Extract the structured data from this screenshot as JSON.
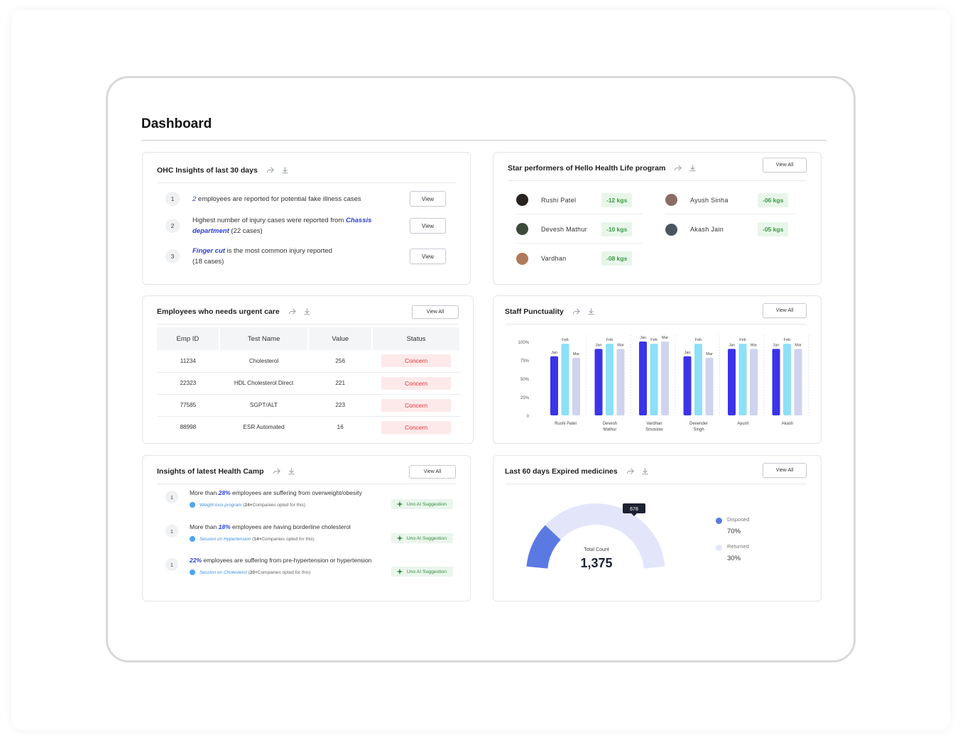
{
  "dashboard": {
    "title": "Dashboard"
  },
  "ohc": {
    "title": "OHC Insights of last 30 days",
    "items": [
      {
        "num": "1",
        "highlight": "2",
        "text": " employees are reported for potential fake illness cases",
        "button": "View"
      },
      {
        "num": "2",
        "text_before": "Highest number of injury cases were reported from ",
        "highlight": "Chassis department",
        "text_after": " (22 cases)",
        "button": "View"
      },
      {
        "num": "3",
        "highlight": "Finger cut",
        "text": " is the most common injury reported",
        "text2": "(18 cases)",
        "button": "View"
      }
    ]
  },
  "star": {
    "title": "Star performers of Hello Health Life program",
    "view_all": "View All",
    "people": [
      {
        "name": "Rushi Patel",
        "value": "-12 kgs",
        "avatar_color": "#2a2220"
      },
      {
        "name": "Ayush Sinha",
        "value": "-06 kgs",
        "avatar_color": "#8a6e63"
      },
      {
        "name": "Devesh Mathur",
        "value": "-10 kgs",
        "avatar_color": "#3d4a3a"
      },
      {
        "name": "Akash Jain",
        "value": "-05 kgs",
        "avatar_color": "#4b5560"
      },
      {
        "name": "Vardhan",
        "value": "-08 kgs",
        "avatar_color": "#b07a5a"
      }
    ]
  },
  "urgent": {
    "title": "Employees who needs urgent care",
    "view_all": "View All",
    "columns": [
      "Emp ID",
      "Test Name",
      "Value",
      "Status"
    ],
    "rows": [
      [
        "11234",
        "Cholesterol",
        "256",
        "Concern"
      ],
      [
        "22323",
        "HDL Cholesterol Direct",
        "221",
        "Concern"
      ],
      [
        "77585",
        "SGPT/ALT",
        "223",
        "Concern"
      ],
      [
        "88998",
        "ESR Automated",
        "16",
        "Concern"
      ]
    ]
  },
  "punctuality": {
    "title": "Staff Punctuality",
    "view_all": "View All"
  },
  "chart_data": {
    "type": "bar",
    "title": "Staff Punctuality",
    "categories": [
      "Rushi Patel",
      "Devesh Mathur",
      "Vardhan Srivastav",
      "Devender Singh",
      "Ayush",
      "Akash"
    ],
    "category_lines": [
      [
        "Rushi Patel"
      ],
      [
        "Devesh",
        "Mathur"
      ],
      [
        "Vardhan",
        "Srivastav"
      ],
      [
        "Devender",
        "Singh"
      ],
      [
        "Ayush"
      ],
      [
        "Akash"
      ]
    ],
    "series": [
      {
        "name": "Jan",
        "color": "#3b34e8",
        "values": [
          80,
          90,
          100,
          80,
          90,
          90
        ]
      },
      {
        "name": "Feb",
        "color": "#8de0f8",
        "values": [
          97,
          97,
          97,
          97,
          97,
          97
        ]
      },
      {
        "name": "Mar",
        "color": "#cfd3ef",
        "values": [
          78,
          90,
          100,
          78,
          90,
          90
        ]
      }
    ],
    "yticks": [
      "100%",
      "75%",
      "50%",
      "25%",
      "0"
    ],
    "ylim": [
      0,
      100
    ],
    "grid": false,
    "legend": "none"
  },
  "camp": {
    "title": "Insights of latest Health Camp",
    "view_all": "View All",
    "ai_label": "Uno AI Suggestion",
    "items": [
      {
        "num": "1",
        "before": "More than ",
        "highlight": "28%",
        "after": " employees are suffering from overweight/obesity",
        "link": "Weight loss program",
        "count": "24+",
        "suffix": " Companies opted for this)"
      },
      {
        "num": "1",
        "before": "More than ",
        "highlight": "18%",
        "after": " employees are having borderline cholesterol",
        "link": "Session on Hypertension",
        "count": "14+",
        "suffix": " Companies opted for this)"
      },
      {
        "num": "1",
        "before": "",
        "highlight": "22%",
        "after": " employees are suffering from pre-hypertension or hypertension",
        "link": "Session on Cholesterol",
        "count": "20+",
        "suffix": " Companies opted for this)"
      }
    ]
  },
  "expired": {
    "title": "Last 60 days Expired medicines",
    "view_all": "View All",
    "total_label": "Total Count",
    "total": "1,375",
    "tooltip": "678",
    "disposed_pct": 70,
    "legend": [
      {
        "label": "Disposed",
        "value": "70%",
        "color": "#5a79e3"
      },
      {
        "label": "Returned",
        "value": "30%",
        "color": "#e3e6fb"
      }
    ]
  }
}
